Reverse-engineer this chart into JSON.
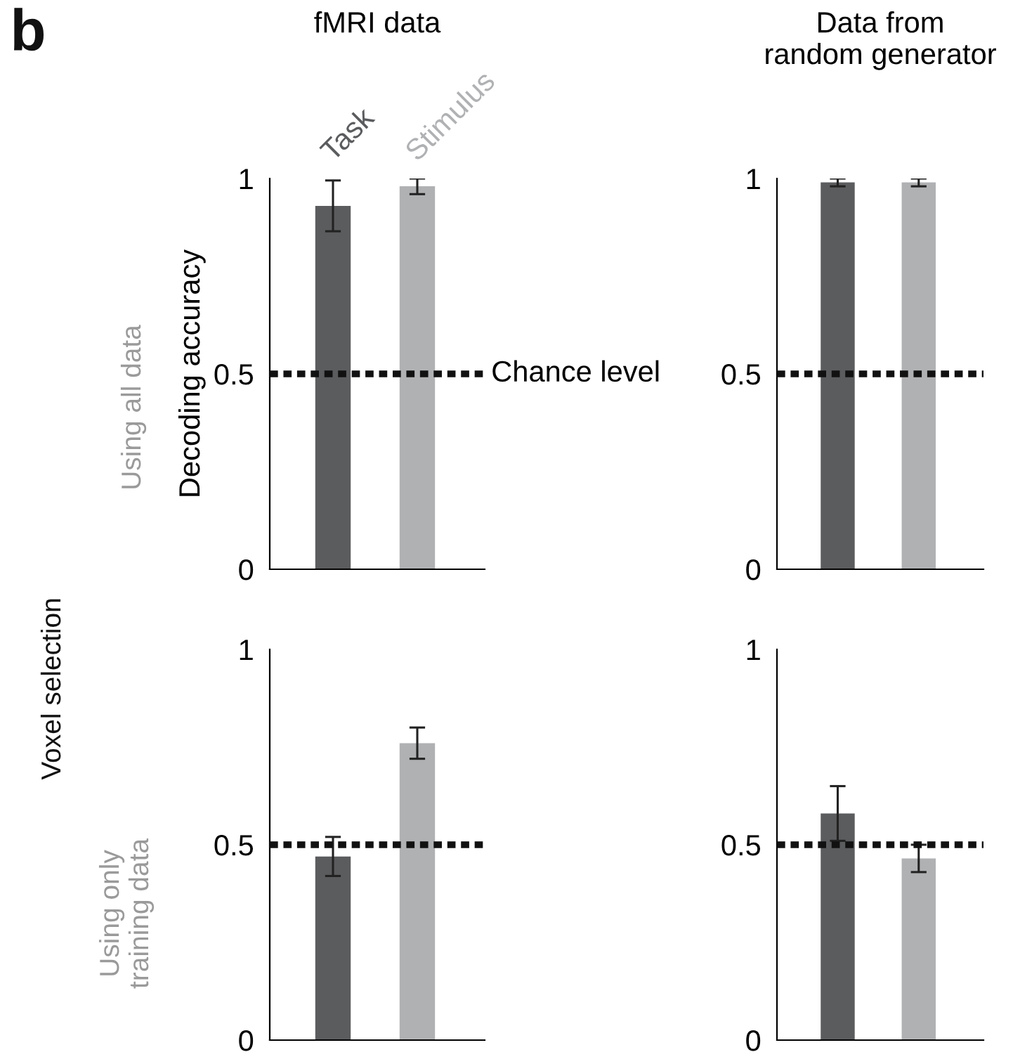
{
  "chart_data": [
    {
      "type": "bar",
      "title": "fMRI data",
      "ylabel": "Decoding accuracy",
      "categories": [
        "Task",
        "Stimulus"
      ],
      "values": [
        0.93,
        0.98
      ],
      "errors": [
        0.065,
        0.02
      ],
      "colors": [
        "#5b5c5e",
        "#b0b1b3"
      ],
      "ylim": [
        0,
        1
      ],
      "yticks": [
        0,
        0.5,
        1
      ],
      "grid": false,
      "legend": false,
      "ref_lines": [
        {
          "axis": "y",
          "value": 0.5,
          "label": "Chance level",
          "color": "#111111",
          "line_style": "dotted"
        }
      ],
      "annotations": [
        "b",
        "Using all data",
        "Voxel selection"
      ]
    },
    {
      "type": "bar",
      "title": "Data from\nrandom generator",
      "categories": [
        null,
        null
      ],
      "values": [
        0.99,
        0.99
      ],
      "errors": [
        0.01,
        0.01
      ],
      "colors": [
        "#5b5c5e",
        "#b0b1b3"
      ],
      "ylim": [
        0,
        1
      ],
      "yticks": [
        0,
        0.5,
        1
      ],
      "grid": false,
      "legend": false,
      "ref_lines": [
        {
          "axis": "y",
          "value": 0.5,
          "label": null,
          "color": "#111111",
          "line_style": "dotted"
        }
      ]
    },
    {
      "type": "bar",
      "categories": [
        null,
        null
      ],
      "values": [
        0.47,
        0.76
      ],
      "errors": [
        0.05,
        0.04
      ],
      "colors": [
        "#5b5c5e",
        "#b0b1b3"
      ],
      "ylim": [
        0,
        1
      ],
      "yticks": [
        0,
        0.5,
        1
      ],
      "grid": false,
      "legend": false,
      "ref_lines": [
        {
          "axis": "y",
          "value": 0.5,
          "label": null,
          "color": "#111111",
          "line_style": "dotted"
        }
      ],
      "annotations": [
        "Using only\ntraining data"
      ]
    },
    {
      "type": "bar",
      "categories": [
        null,
        null
      ],
      "values": [
        0.58,
        0.465
      ],
      "errors": [
        0.07,
        0.035
      ],
      "colors": [
        "#5b5c5e",
        "#b0b1b3"
      ],
      "ylim": [
        0,
        1
      ],
      "yticks": [
        0,
        0.5,
        1
      ],
      "grid": false,
      "legend": false,
      "ref_lines": [
        {
          "axis": "y",
          "value": 0.5,
          "label": null,
          "color": "#111111",
          "line_style": "dotted"
        }
      ]
    }
  ]
}
